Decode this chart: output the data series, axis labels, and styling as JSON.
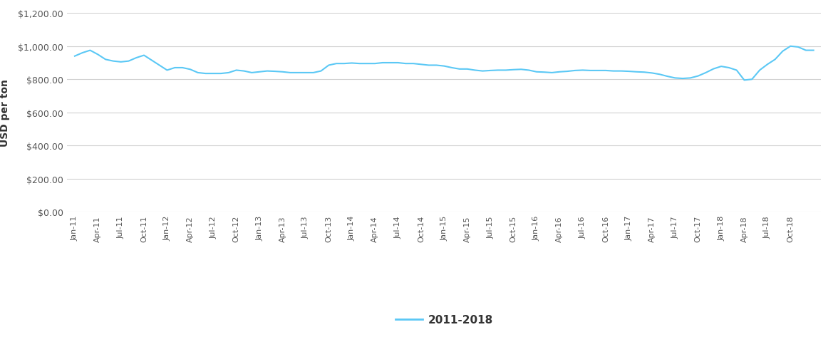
{
  "ylabel": "USD per ton",
  "legend_label": "2011-2018",
  "line_color": "#5BC8F5",
  "background_color": "#ffffff",
  "grid_color": "#d0d0d0",
  "ylim": [
    0,
    1200
  ],
  "ytick_values": [
    0,
    200,
    400,
    600,
    800,
    1000,
    1200
  ],
  "tick_labels": [
    "Jan-11",
    "Apr-11",
    "Jul-11",
    "Oct-11",
    "Jan-12",
    "Apr-12",
    "Jul-12",
    "Oct-12",
    "Jan-13",
    "Apr-13",
    "Jul-13",
    "Oct-13",
    "Jan-14",
    "Apr-14",
    "Jul-14",
    "Oct-14",
    "Jan-15",
    "Apr-15",
    "Jul-15",
    "Oct-15",
    "Jan-16",
    "Apr-16",
    "Jul-16",
    "Oct-16",
    "Jan-17",
    "Apr-17",
    "Jul-17",
    "Oct-17",
    "Jan-18",
    "Apr-18",
    "Jul-18",
    "Oct-18"
  ],
  "values": [
    940,
    960,
    975,
    950,
    920,
    910,
    905,
    910,
    930,
    945,
    915,
    885,
    855,
    870,
    870,
    860,
    840,
    835,
    835,
    835,
    840,
    855,
    850,
    840,
    845,
    850,
    848,
    845,
    840,
    840,
    840,
    840,
    850,
    885,
    895,
    895,
    898,
    895,
    895,
    895,
    900,
    900,
    900,
    895,
    895,
    890,
    885,
    885,
    880,
    870,
    862,
    862,
    855,
    850,
    853,
    855,
    855,
    858,
    860,
    855,
    845,
    843,
    840,
    845,
    848,
    853,
    855,
    853,
    853,
    853,
    850,
    850,
    848,
    845,
    843,
    838,
    830,
    818,
    808,
    805,
    808,
    820,
    840,
    863,
    878,
    870,
    855,
    795,
    800,
    855,
    890,
    920,
    970,
    1000,
    995,
    975,
    975
  ]
}
